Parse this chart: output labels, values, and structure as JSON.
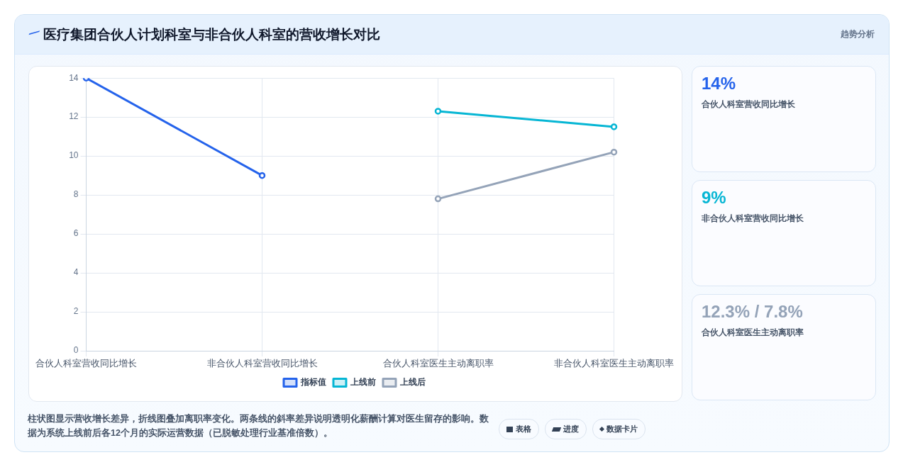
{
  "chart_data": [
    {
      "type": "line",
      "title": "医疗集团合伙人计划科室与非合伙人科室的营收增长对比",
      "categories": [
        "合伙人科室营收同比增长",
        "非合伙人科室营收同比增长",
        "合伙人科室医生主动离职率",
        "非合伙人科室医生主动离职率"
      ],
      "series": [
        {
          "name": "指标值",
          "color": "#2563eb",
          "values": [
            14,
            9,
            null,
            null
          ]
        },
        {
          "name": "上线前",
          "color": "#06b6d4",
          "values": [
            null,
            null,
            12.3,
            11.5
          ]
        },
        {
          "name": "上线后",
          "color": "#94a3b8",
          "values": [
            null,
            null,
            7.8,
            10.2
          ]
        }
      ],
      "ylim": [
        0,
        14
      ],
      "yticks": [
        0,
        2,
        4,
        6,
        8,
        10,
        12,
        14
      ],
      "grid": true,
      "legend": "bottom",
      "marker": "circle",
      "line_style": "solid",
      "annotations": [
        "趋势分析",
        "柱状图显示营收增长差异，折线图叠加离职率变化。两条线的斜率差异说明透明化薪酬计算对医生留存的影响。数据为系统上线前后各12个月的实际运营数据（已脱敏处理行业基准倍数）。",
        "表格",
        "进度",
        "数据卡片"
      ]
    },
    {
      "type": "other",
      "colors": [
        "#2563eb",
        "#06b6d4",
        "#94a3b8"
      ],
      "annotations": [
        "14%",
        "合伙人科室营收同比增长",
        "9%",
        "非合伙人科室营收同比增长",
        "12.3% / 7.8%",
        "合伙人科室医生主动离职率"
      ]
    }
  ]
}
